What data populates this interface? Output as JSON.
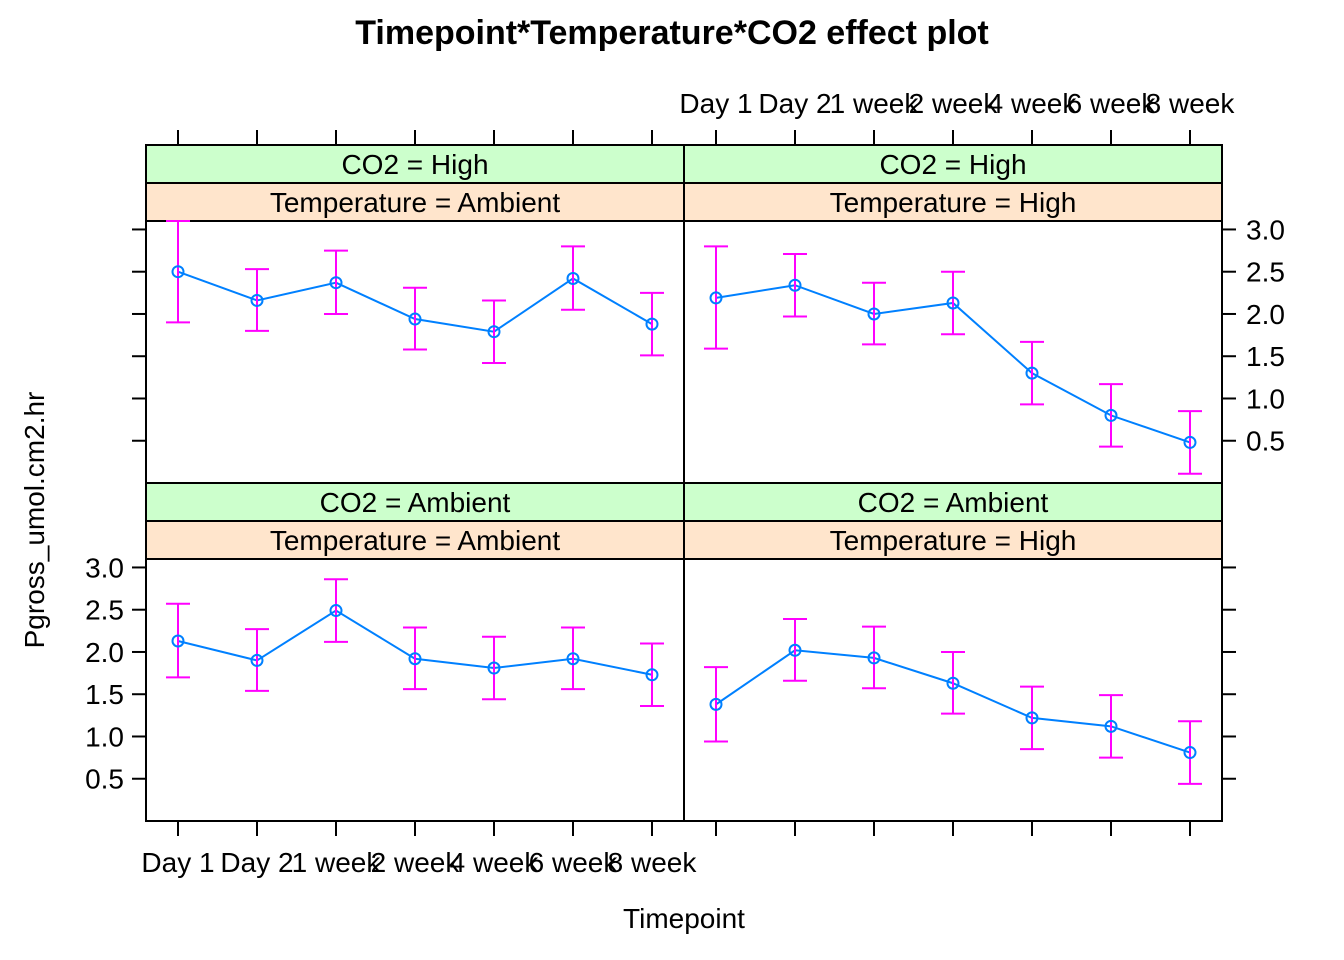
{
  "chart_data": {
    "type": "line",
    "title": "Timepoint*Temperature*CO2 effect plot",
    "xlabel": "Timepoint",
    "ylabel": "Pgross_umol.cm2.hr",
    "categories": [
      "Day 1",
      "Day 2",
      "1 week",
      "2 week",
      "4 week",
      "6 week",
      "8 week"
    ],
    "yticks": [
      "0.5",
      "1.0",
      "1.5",
      "2.0",
      "2.5",
      "3.0"
    ],
    "ylim": [
      0.0,
      3.1
    ],
    "colors": {
      "line": "#0080ff",
      "error_bar": "#ff00ff",
      "strip_top": "#ccffcc",
      "strip_bottom": "#ffe5cc"
    },
    "panels": [
      {
        "strip_top": "CO2 = High",
        "strip_bottom": "Temperature = Ambient",
        "row": "top",
        "col": "left",
        "values": [
          2.5,
          2.16,
          2.37,
          1.94,
          1.79,
          2.42,
          1.88
        ],
        "lower": [
          1.9,
          1.8,
          2.0,
          1.58,
          1.42,
          2.05,
          1.51
        ],
        "upper": [
          3.1,
          2.53,
          2.75,
          2.31,
          2.16,
          2.8,
          2.25
        ]
      },
      {
        "strip_top": "CO2 = High",
        "strip_bottom": "Temperature = High",
        "row": "top",
        "col": "right",
        "values": [
          2.19,
          2.34,
          2.0,
          2.13,
          1.3,
          0.8,
          0.48
        ],
        "lower": [
          1.59,
          1.97,
          1.64,
          1.76,
          0.93,
          0.43,
          0.11
        ],
        "upper": [
          2.8,
          2.71,
          2.37,
          2.5,
          1.67,
          1.17,
          0.85
        ]
      },
      {
        "strip_top": "CO2 = Ambient",
        "strip_bottom": "Temperature = Ambient",
        "row": "bottom",
        "col": "left",
        "values": [
          2.13,
          1.9,
          2.49,
          1.92,
          1.81,
          1.92,
          1.73
        ],
        "lower": [
          1.7,
          1.54,
          2.12,
          1.56,
          1.44,
          1.56,
          1.36
        ],
        "upper": [
          2.57,
          2.27,
          2.86,
          2.29,
          2.18,
          2.29,
          2.1
        ]
      },
      {
        "strip_top": "CO2 = Ambient",
        "strip_bottom": "Temperature = High",
        "row": "bottom",
        "col": "right",
        "values": [
          1.38,
          2.02,
          1.93,
          1.63,
          1.22,
          1.12,
          0.81
        ],
        "lower": [
          0.94,
          1.66,
          1.57,
          1.27,
          0.85,
          0.75,
          0.44
        ],
        "upper": [
          1.82,
          2.39,
          2.3,
          2.0,
          1.59,
          1.49,
          1.18
        ]
      }
    ]
  }
}
